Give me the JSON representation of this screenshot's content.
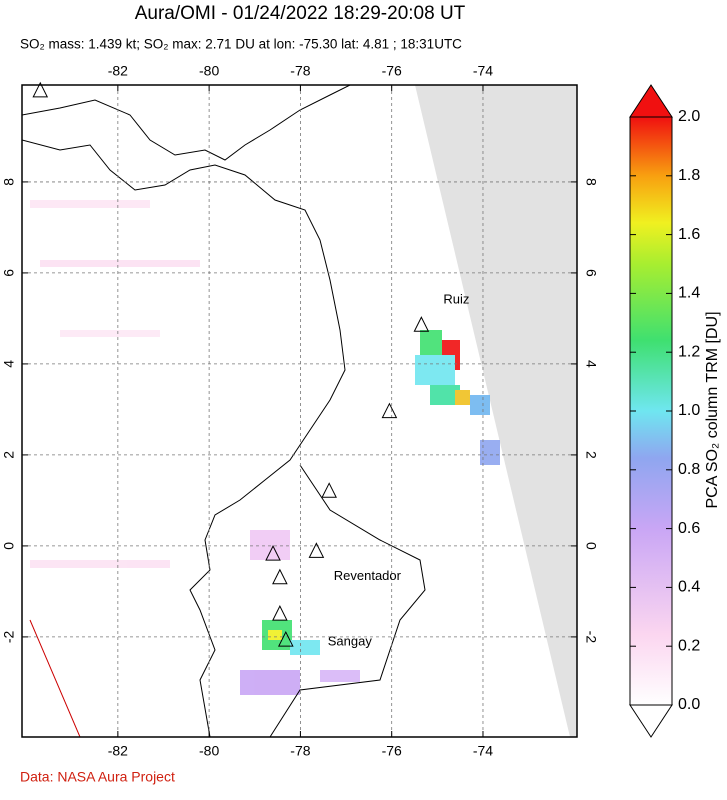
{
  "title": "Aura/OMI - 01/24/2022 18:29-20:08 UT",
  "subtitle": "SO₂ mass: 1.439 kt; SO₂ max: 2.71 DU at lon: -75.30 lat: 4.81 ; 18:31UTC",
  "map": {
    "xlim": [
      -84.1,
      -71.94
    ],
    "ylim": [
      -4.2,
      10.13
    ],
    "xticks": [
      -82,
      -80,
      -78,
      -76,
      -74
    ],
    "yticks": [
      8,
      6,
      4,
      2,
      0,
      -2
    ],
    "volcanoes": [
      {
        "lon": -83.7,
        "lat": 10.0
      },
      {
        "lon": -75.35,
        "lat": 4.85,
        "label": "Ruiz"
      },
      {
        "lon": -76.05,
        "lat": 2.95
      },
      {
        "lon": -77.37,
        "lat": 1.2
      },
      {
        "lon": -78.6,
        "lat": -0.18
      },
      {
        "lon": -77.65,
        "lat": -0.12,
        "label": "Reventador"
      },
      {
        "lon": -78.45,
        "lat": -0.7
      },
      {
        "lon": -78.45,
        "lat": -1.5
      },
      {
        "lon": -78.32,
        "lat": -2.07,
        "label": "Sangay"
      }
    ]
  },
  "colorbar": {
    "label": "PCA SO₂ column TRM [DU]",
    "lim": [
      0,
      2
    ],
    "ticks": [
      {
        "value": 0,
        "label": "0.0"
      },
      0.2,
      0.4,
      0.6,
      0.8,
      {
        "value": 1,
        "label": "1.0"
      },
      1.2,
      1.4,
      1.6,
      1.8,
      {
        "value": 2,
        "label": "2.0"
      }
    ]
  },
  "footer": "Data: NASA Aura Project"
}
